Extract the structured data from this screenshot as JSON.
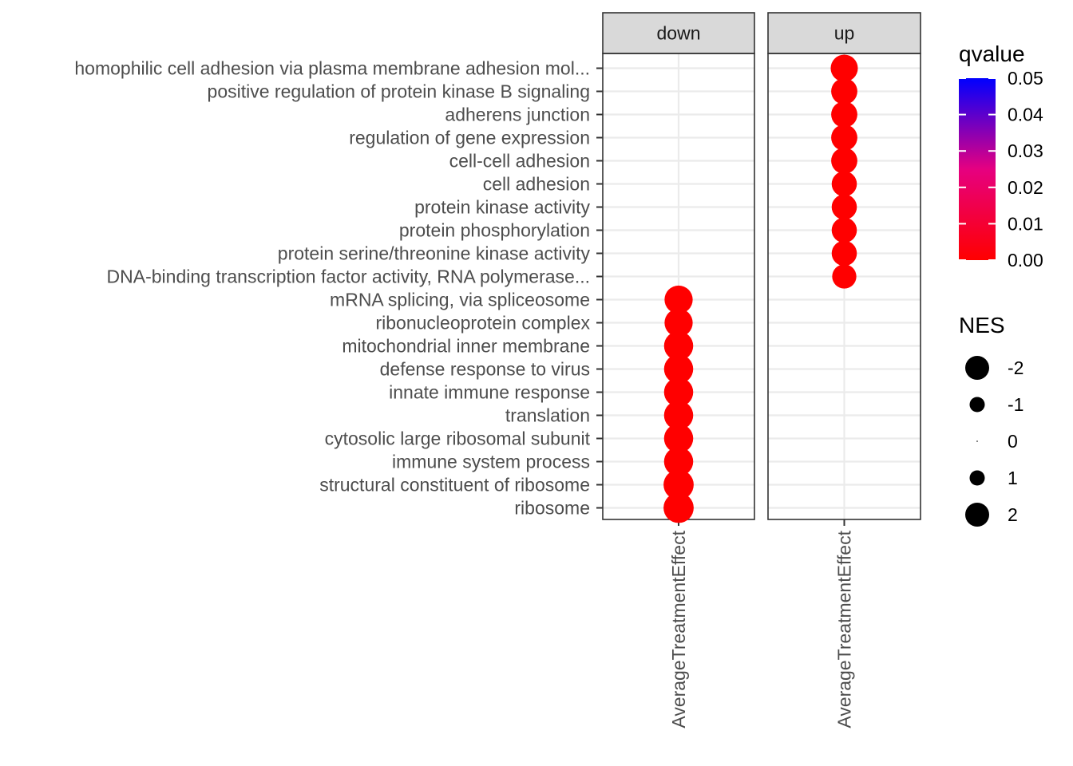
{
  "chart_data": {
    "type": "scatter",
    "facets": [
      "down",
      "up"
    ],
    "x_categories": [
      "AverageTreatmentEffect"
    ],
    "y_categories": [
      "homophilic cell adhesion via plasma membrane adhesion mol...",
      "positive regulation of protein kinase B signaling",
      "adherens junction",
      "regulation of gene expression",
      "cell-cell adhesion",
      "cell adhesion",
      "protein kinase activity",
      "protein phosphorylation",
      "protein serine/threonine kinase activity",
      "DNA-binding transcription factor activity, RNA polymerase...",
      "mRNA splicing, via spliceosome",
      "ribonucleoprotein complex",
      "mitochondrial inner membrane",
      "defense response to virus",
      "innate immune response",
      "translation",
      "cytosolic large ribosomal subunit",
      "immune system process",
      "structural constituent of ribosome",
      "ribosome"
    ],
    "points": [
      {
        "facet": "up",
        "x": "AverageTreatmentEffect",
        "y": "homophilic cell adhesion via plasma membrane adhesion mol...",
        "NES": 2.1,
        "qvalue": 0.0
      },
      {
        "facet": "up",
        "x": "AverageTreatmentEffect",
        "y": "positive regulation of protein kinase B signaling",
        "NES": 2.0,
        "qvalue": 0.0
      },
      {
        "facet": "up",
        "x": "AverageTreatmentEffect",
        "y": "adherens junction",
        "NES": 2.0,
        "qvalue": 0.0
      },
      {
        "facet": "up",
        "x": "AverageTreatmentEffect",
        "y": "regulation of gene expression",
        "NES": 2.0,
        "qvalue": 0.0
      },
      {
        "facet": "up",
        "x": "AverageTreatmentEffect",
        "y": "cell-cell adhesion",
        "NES": 2.0,
        "qvalue": 0.0
      },
      {
        "facet": "up",
        "x": "AverageTreatmentEffect",
        "y": "cell adhesion",
        "NES": 1.9,
        "qvalue": 0.0
      },
      {
        "facet": "up",
        "x": "AverageTreatmentEffect",
        "y": "protein kinase activity",
        "NES": 1.9,
        "qvalue": 0.0
      },
      {
        "facet": "up",
        "x": "AverageTreatmentEffect",
        "y": "protein phosphorylation",
        "NES": 1.9,
        "qvalue": 0.0
      },
      {
        "facet": "up",
        "x": "AverageTreatmentEffect",
        "y": "protein serine/threonine kinase activity",
        "NES": 1.9,
        "qvalue": 0.0
      },
      {
        "facet": "up",
        "x": "AverageTreatmentEffect",
        "y": "DNA-binding transcription factor activity, RNA polymerase...",
        "NES": 1.8,
        "qvalue": 0.0
      },
      {
        "facet": "down",
        "x": "AverageTreatmentEffect",
        "y": "mRNA splicing, via spliceosome",
        "NES": -2.2,
        "qvalue": 0.0
      },
      {
        "facet": "down",
        "x": "AverageTreatmentEffect",
        "y": "ribonucleoprotein complex",
        "NES": -2.2,
        "qvalue": 0.0
      },
      {
        "facet": "down",
        "x": "AverageTreatmentEffect",
        "y": "mitochondrial inner membrane",
        "NES": -2.3,
        "qvalue": 0.0
      },
      {
        "facet": "down",
        "x": "AverageTreatmentEffect",
        "y": "defense response to virus",
        "NES": -2.3,
        "qvalue": 0.0
      },
      {
        "facet": "down",
        "x": "AverageTreatmentEffect",
        "y": "innate immune response",
        "NES": -2.3,
        "qvalue": 0.0
      },
      {
        "facet": "down",
        "x": "AverageTreatmentEffect",
        "y": "translation",
        "NES": -2.3,
        "qvalue": 0.0
      },
      {
        "facet": "down",
        "x": "AverageTreatmentEffect",
        "y": "cytosolic large ribosomal subunit",
        "NES": -2.3,
        "qvalue": 0.0
      },
      {
        "facet": "down",
        "x": "AverageTreatmentEffect",
        "y": "immune system process",
        "NES": -2.3,
        "qvalue": 0.0
      },
      {
        "facet": "down",
        "x": "AverageTreatmentEffect",
        "y": "structural constituent of ribosome",
        "NES": -2.4,
        "qvalue": 0.0
      },
      {
        "facet": "down",
        "x": "AverageTreatmentEffect",
        "y": "ribosome",
        "NES": -2.4,
        "qvalue": 0.0
      }
    ],
    "legend": {
      "color": {
        "title": "qvalue",
        "breaks": [
          "0.05",
          "0.04",
          "0.03",
          "0.02",
          "0.01",
          "0.00"
        ],
        "range": [
          0,
          0.05
        ],
        "low_color": "#ff0000",
        "high_color": "#0000ff"
      },
      "size": {
        "title": "NES",
        "breaks": [
          -2,
          -1,
          0,
          1,
          2
        ],
        "labels": [
          "-2",
          "-1",
          "0",
          "1",
          "2"
        ]
      }
    },
    "colors": {
      "panel_border": "#333333",
      "strip_fill": "#d9d9d9",
      "grid": "#ebebeb",
      "tick": "#333333"
    },
    "grid": true
  }
}
